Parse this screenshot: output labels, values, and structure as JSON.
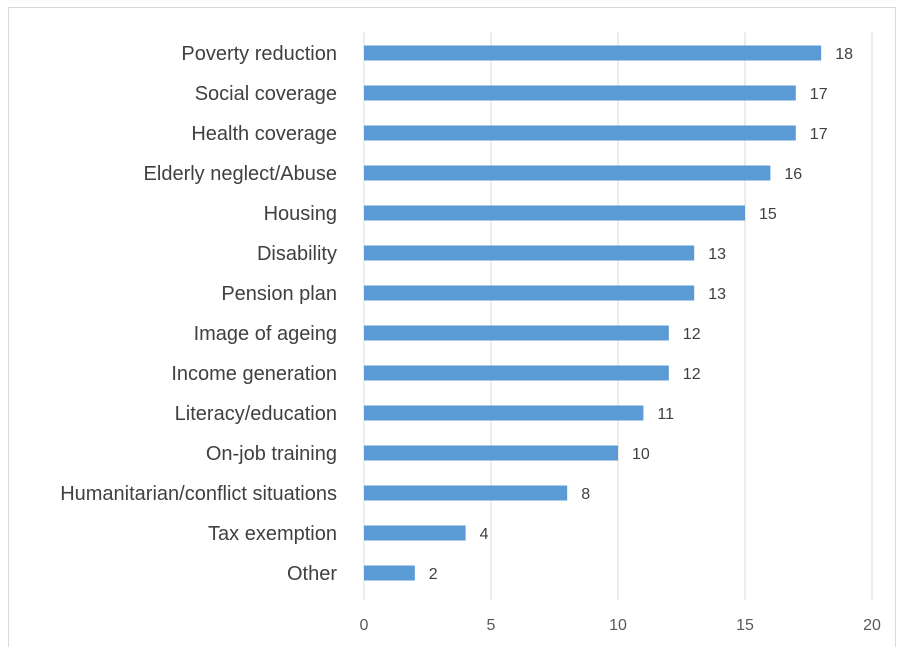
{
  "chart_data": {
    "type": "bar",
    "orientation": "horizontal",
    "categories": [
      "Poverty reduction",
      "Social coverage",
      "Health coverage",
      "Elderly neglect/Abuse",
      "Housing",
      "Disability",
      "Pension plan",
      "Image of ageing",
      "Income generation",
      "Literacy/education",
      "On-job training",
      "Humanitarian/conflict situations",
      "Tax exemption",
      "Other"
    ],
    "values": [
      18,
      17,
      17,
      16,
      15,
      13,
      13,
      12,
      12,
      11,
      10,
      8,
      4,
      2
    ],
    "xlim": [
      0,
      20
    ],
    "xticks": [
      0,
      5,
      10,
      15,
      20
    ],
    "grid": "vertical",
    "bar_color": "#5b9bd5",
    "grid_color": "#d9d9d9",
    "text_color": "#404040"
  }
}
